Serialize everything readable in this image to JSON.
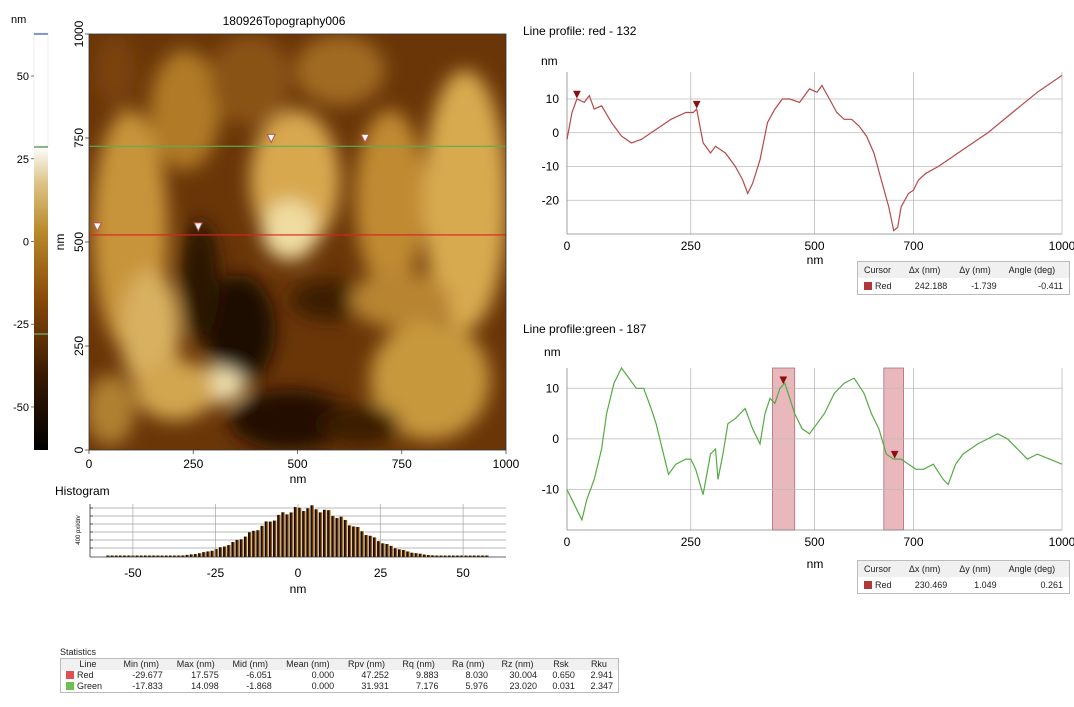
{
  "image_title": "180926Topography006",
  "colorbar": {
    "unit": "nm",
    "ticks": [
      50,
      25,
      0,
      -25,
      -50
    ],
    "range": [
      -63,
      63
    ],
    "marker_colors": [
      "#5a78c8",
      "#6a9e6a",
      "#6a9e6a"
    ]
  },
  "topography": {
    "xlabel": "nm",
    "ylabel": "nm",
    "xticks": [
      0,
      250,
      500,
      750,
      1000
    ],
    "yticks": [
      0,
      250,
      500,
      750,
      1000
    ],
    "range": [
      0,
      1000
    ],
    "green_line_y": 730,
    "red_line_y": 517,
    "markers_on_red": [
      20,
      262
    ],
    "markers_on_green": [
      437,
      662
    ],
    "line_colors": {
      "red": "#e02020",
      "green": "#55b055"
    }
  },
  "histogram": {
    "title": "Histogram",
    "ylabel": "400 pxl/drv",
    "xlabel": "nm",
    "xticks": [
      -50,
      -25,
      0,
      25,
      50
    ],
    "range": [
      -63,
      63
    ]
  },
  "chart_data": [
    {
      "type": "line",
      "title": "Line profile: red - 132",
      "ylabel": "nm",
      "xlabel": "nm",
      "xlim": [
        0,
        1000
      ],
      "ylim": [
        -30,
        18
      ],
      "xticks": [
        0,
        250,
        500,
        700,
        1000
      ],
      "yticks": [
        10,
        0,
        -10,
        -20
      ],
      "color": "#b84848",
      "x": [
        0,
        10,
        20,
        35,
        45,
        55,
        70,
        90,
        110,
        130,
        150,
        180,
        210,
        240,
        255,
        262,
        275,
        285,
        290,
        300,
        320,
        340,
        355,
        365,
        375,
        390,
        405,
        420,
        435,
        450,
        470,
        490,
        505,
        515,
        530,
        545,
        560,
        575,
        590,
        605,
        620,
        635,
        650,
        660,
        668,
        675,
        690,
        700,
        710,
        725,
        750,
        800,
        850,
        900,
        950,
        1000
      ],
      "y": [
        -2,
        6,
        10,
        9,
        11,
        7,
        8,
        3,
        -1,
        -3,
        -2,
        1,
        4,
        6,
        6,
        7,
        -3,
        -5,
        -6,
        -4,
        -6,
        -10,
        -14,
        -18,
        -15,
        -8,
        3,
        7,
        10,
        10,
        9,
        13,
        12,
        14,
        10,
        6,
        4,
        4,
        2,
        -1,
        -6,
        -14,
        -22,
        -29,
        -28,
        -22,
        -18,
        -17,
        -14,
        -12,
        -10,
        -5,
        0,
        6,
        12,
        17
      ]
    },
    {
      "type": "line",
      "title": "Line profile:green - 187",
      "ylabel": "nm",
      "xlabel": "nm",
      "xlim": [
        0,
        1000
      ],
      "ylim": [
        -18,
        14
      ],
      "xticks": [
        0,
        250,
        500,
        700,
        1000
      ],
      "yticks": [
        10,
        0,
        -10
      ],
      "color": "#55aa44",
      "x": [
        0,
        15,
        30,
        40,
        55,
        70,
        80,
        95,
        110,
        125,
        140,
        155,
        170,
        180,
        190,
        205,
        220,
        240,
        250,
        260,
        275,
        290,
        300,
        305,
        315,
        325,
        340,
        360,
        375,
        390,
        400,
        410,
        420,
        430,
        440,
        450,
        460,
        475,
        490,
        505,
        520,
        540,
        560,
        580,
        600,
        615,
        630,
        645,
        660,
        675,
        690,
        705,
        720,
        740,
        760,
        770,
        785,
        800,
        815,
        830,
        850,
        870,
        890,
        910,
        930,
        950,
        975,
        1000
      ],
      "y": [
        -10,
        -13,
        -16,
        -12,
        -8,
        -2,
        5,
        11,
        14,
        12,
        10,
        10,
        6,
        3,
        -1,
        -7,
        -5,
        -4,
        -4,
        -6,
        -11,
        -3,
        -2,
        -8,
        -3,
        3,
        4,
        6,
        2,
        -1,
        5,
        8,
        7,
        10,
        11,
        8,
        5,
        2,
        1,
        3,
        5,
        9,
        11,
        12,
        9,
        5,
        2,
        -3,
        -4,
        -4,
        -5,
        -6,
        -6,
        -5,
        -8,
        -9,
        -5,
        -3,
        -2,
        -1,
        0,
        1,
        0,
        -2,
        -4,
        -3,
        -4,
        -5
      ]
    }
  ],
  "red_profile": {
    "markers_x": [
      20,
      262
    ],
    "cursor": {
      "headers": [
        "Cursor",
        "Δx (nm)",
        "Δy (nm)",
        "Angle (deg)"
      ],
      "row": [
        "Red",
        "242.188",
        "-1.739",
        "-0.411"
      ],
      "swatch": "#b03838"
    }
  },
  "green_profile": {
    "markers_x": [
      437,
      662
    ],
    "bands": [
      [
        415,
        460
      ],
      [
        640,
        680
      ]
    ],
    "band_color": "#e8b8bc",
    "cursor": {
      "headers": [
        "Cursor",
        "Δx (nm)",
        "Δy (nm)",
        "Angle (deg)"
      ],
      "row": [
        "Red",
        "230.469",
        "1.049",
        "0.261"
      ],
      "swatch": "#b03838"
    }
  },
  "statistics": {
    "title": "Statistics",
    "headers": [
      "Line",
      "Min (nm)",
      "Max (nm)",
      "Mid (nm)",
      "Mean (nm)",
      "Rpv (nm)",
      "Rq (nm)",
      "Ra (nm)",
      "Rz (nm)",
      "Rsk",
      "Rku"
    ],
    "rows": [
      {
        "name": "Red",
        "color": "#e05050",
        "values": [
          "-29.677",
          "17.575",
          "-6.051",
          "0.000",
          "47.252",
          "9.883",
          "8.030",
          "30.004",
          "0.650",
          "2.941"
        ]
      },
      {
        "name": "Green",
        "color": "#6cc050",
        "values": [
          "-17.833",
          "14.098",
          "-1.868",
          "0.000",
          "31.931",
          "7.176",
          "5.976",
          "23.020",
          "0.031",
          "2.347"
        ]
      }
    ]
  }
}
